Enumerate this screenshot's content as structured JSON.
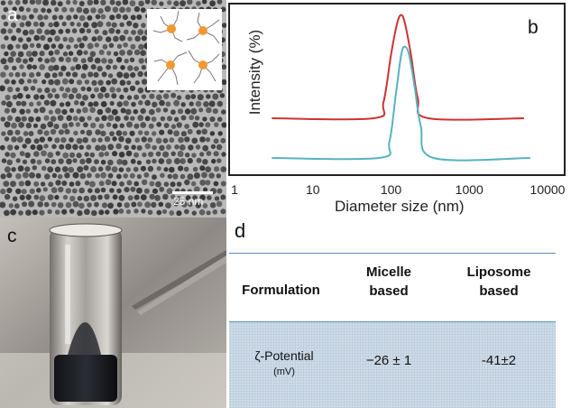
{
  "panels": {
    "a": {
      "letter": "a",
      "scale_bar_label": "25 nm"
    },
    "b": {
      "letter": "b"
    },
    "c": {
      "letter": "c"
    },
    "d": {
      "letter": "d"
    }
  },
  "chart_data": {
    "type": "line",
    "xlabel": "Diameter size (nm)",
    "ylabel": "Intensity (%)",
    "xscale": "log",
    "xlim": [
      1,
      10000
    ],
    "xticks": [
      "1",
      "10",
      "100",
      "1000",
      "10000"
    ],
    "series": [
      {
        "color": "#cc3333",
        "x": [
          3,
          60,
          80,
          100,
          120,
          135,
          150,
          180,
          220,
          300,
          5000
        ],
        "y": [
          1.0,
          1.0,
          1.4,
          2.6,
          3.4,
          3.6,
          3.4,
          2.6,
          1.5,
          1.0,
          1.0
        ]
      },
      {
        "color": "#55b3c2",
        "x": [
          3,
          70,
          95,
          115,
          135,
          150,
          170,
          200,
          240,
          350,
          6000
        ],
        "y": [
          0.0,
          0.0,
          0.4,
          1.6,
          2.6,
          2.8,
          2.6,
          1.8,
          0.8,
          0.0,
          0.0
        ]
      }
    ]
  },
  "table": {
    "header_row_label": "Formulation",
    "col1_header_line1": "Micelle",
    "col1_header_line2": "based",
    "col2_header_line1": "Liposome",
    "col2_header_line2": "based",
    "row_label_line1": "ζ-Potential",
    "row_label_line2": "(mV)",
    "micelle_value": "−26 ± 1",
    "liposome_value": "-41±2"
  },
  "colors": {
    "red_series": "#cc3333",
    "cyan_series": "#55b3c2",
    "table_rule": "#5b8fb6",
    "table_shade": "#cfdce8"
  }
}
